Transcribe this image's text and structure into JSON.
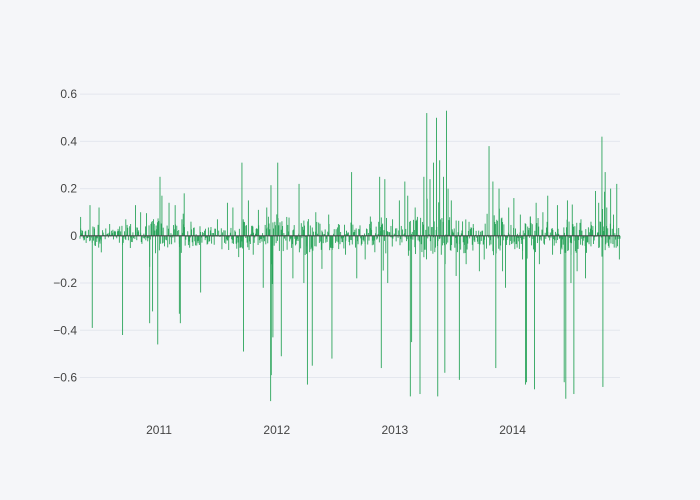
{
  "chart_data": {
    "type": "bar",
    "title": "",
    "xlabel": "",
    "ylabel": "",
    "x_range": [
      "2010-05-01",
      "2014-11-30"
    ],
    "ylim": [
      -0.78,
      0.66
    ],
    "y_ticks": [
      {
        "value": 0.6,
        "label": "0.6"
      },
      {
        "value": 0.4,
        "label": "0.4"
      },
      {
        "value": 0.2,
        "label": "0.2"
      },
      {
        "value": 0,
        "label": "0"
      },
      {
        "value": -0.2,
        "label": "−0.2"
      },
      {
        "value": -0.4,
        "label": "−0.4"
      },
      {
        "value": -0.6,
        "label": "−0.6"
      }
    ],
    "x_ticks": [
      {
        "value": "2011-01-01",
        "label": "2011"
      },
      {
        "value": "2012-01-01",
        "label": "2012"
      },
      {
        "value": "2013-01-01",
        "label": "2013"
      },
      {
        "value": "2014-01-01",
        "label": "2014"
      }
    ],
    "grid": true,
    "series": [
      {
        "color": "#2ca55c",
        "sample_interval_days": 2,
        "points": [
          [
            "2010-05-03",
            0.08
          ],
          [
            "2010-05-20",
            -0.03
          ],
          [
            "2010-06-01",
            0.13
          ],
          [
            "2010-06-08",
            -0.39
          ],
          [
            "2010-06-15",
            0.03
          ],
          [
            "2010-06-29",
            0.12
          ],
          [
            "2010-07-06",
            -0.07
          ],
          [
            "2010-08-01",
            0.05
          ],
          [
            "2010-09-01",
            0.04
          ],
          [
            "2010-09-10",
            -0.42
          ],
          [
            "2010-09-20",
            0.07
          ],
          [
            "2010-10-05",
            0.05
          ],
          [
            "2010-10-20",
            0.13
          ],
          [
            "2010-11-05",
            0.1
          ],
          [
            "2010-11-20",
            0.04
          ],
          [
            "2010-12-03",
            -0.37
          ],
          [
            "2010-12-12",
            -0.32
          ],
          [
            "2010-12-28",
            -0.46
          ],
          [
            "2011-01-04",
            0.25
          ],
          [
            "2011-01-10",
            0.17
          ],
          [
            "2011-02-01",
            0.14
          ],
          [
            "2011-02-20",
            0.13
          ],
          [
            "2011-03-05",
            -0.33
          ],
          [
            "2011-03-08",
            -0.37
          ],
          [
            "2011-03-20",
            0.18
          ],
          [
            "2011-04-10",
            0.06
          ],
          [
            "2011-05-10",
            -0.24
          ],
          [
            "2011-05-25",
            0.03
          ],
          [
            "2011-07-01",
            0.07
          ],
          [
            "2011-08-01",
            0.14
          ],
          [
            "2011-08-05",
            -0.06
          ],
          [
            "2011-08-18",
            0.12
          ],
          [
            "2011-09-05",
            -0.09
          ],
          [
            "2011-09-15",
            0.31
          ],
          [
            "2011-09-20",
            -0.49
          ],
          [
            "2011-10-05",
            0.15
          ],
          [
            "2011-10-20",
            -0.08
          ],
          [
            "2011-11-05",
            0.11
          ],
          [
            "2011-11-20",
            -0.22
          ],
          [
            "2011-12-01",
            0.12
          ],
          [
            "2011-12-13",
            -0.7
          ],
          [
            "2011-12-15",
            -0.59
          ],
          [
            "2011-12-20",
            -0.43
          ],
          [
            "2012-01-04",
            0.31
          ],
          [
            "2012-01-15",
            -0.51
          ],
          [
            "2012-02-01",
            0.08
          ],
          [
            "2012-02-20",
            -0.18
          ],
          [
            "2012-03-10",
            0.22
          ],
          [
            "2012-03-25",
            -0.2
          ],
          [
            "2012-04-05",
            -0.63
          ],
          [
            "2012-04-20",
            -0.55
          ],
          [
            "2012-05-01",
            0.1
          ],
          [
            "2012-05-20",
            -0.14
          ],
          [
            "2012-06-10",
            0.09
          ],
          [
            "2012-06-20",
            -0.52
          ],
          [
            "2012-07-10",
            0.05
          ],
          [
            "2012-08-01",
            -0.08
          ],
          [
            "2012-08-20",
            0.27
          ],
          [
            "2012-09-05",
            -0.18
          ],
          [
            "2012-10-01",
            -0.1
          ],
          [
            "2012-10-20",
            0.06
          ],
          [
            "2012-11-15",
            0.25
          ],
          [
            "2012-11-20",
            -0.56
          ],
          [
            "2012-12-01",
            0.24
          ],
          [
            "2012-12-10",
            -0.2
          ],
          [
            "2012-12-25",
            0.07
          ],
          [
            "2013-01-15",
            0.15
          ],
          [
            "2013-02-01",
            0.23
          ],
          [
            "2013-02-10",
            0.17
          ],
          [
            "2013-02-18",
            -0.68
          ],
          [
            "2013-02-22",
            -0.45
          ],
          [
            "2013-03-05",
            0.12
          ],
          [
            "2013-03-20",
            -0.67
          ],
          [
            "2013-04-01",
            0.25
          ],
          [
            "2013-04-10",
            0.52
          ],
          [
            "2013-04-20",
            0.24
          ],
          [
            "2013-05-01",
            0.31
          ],
          [
            "2013-05-10",
            0.5
          ],
          [
            "2013-05-14",
            -0.68
          ],
          [
            "2013-05-20",
            0.32
          ],
          [
            "2013-06-01",
            0.25
          ],
          [
            "2013-06-05",
            -0.58
          ],
          [
            "2013-06-10",
            0.53
          ],
          [
            "2013-06-15",
            0.2
          ],
          [
            "2013-06-25",
            0.15
          ],
          [
            "2013-07-10",
            -0.17
          ],
          [
            "2013-07-20",
            -0.61
          ],
          [
            "2013-08-10",
            -0.12
          ],
          [
            "2013-09-01",
            0.05
          ],
          [
            "2013-09-20",
            -0.15
          ],
          [
            "2013-10-05",
            -0.1
          ],
          [
            "2013-10-20",
            0.38
          ],
          [
            "2013-11-01",
            0.23
          ],
          [
            "2013-11-10",
            -0.56
          ],
          [
            "2013-11-20",
            0.2
          ],
          [
            "2013-12-01",
            -0.15
          ],
          [
            "2013-12-10",
            -0.22
          ],
          [
            "2013-12-20",
            0.12
          ],
          [
            "2014-01-05",
            0.16
          ],
          [
            "2014-01-15",
            -0.05
          ],
          [
            "2014-01-25",
            0.09
          ],
          [
            "2014-02-01",
            -0.1
          ],
          [
            "2014-02-10",
            -0.63
          ],
          [
            "2014-02-13",
            -0.62
          ],
          [
            "2014-02-25",
            0.08
          ],
          [
            "2014-03-10",
            -0.65
          ],
          [
            "2014-03-15",
            0.14
          ],
          [
            "2014-03-25",
            -0.12
          ],
          [
            "2014-04-05",
            0.1
          ],
          [
            "2014-04-20",
            0.17
          ],
          [
            "2014-05-05",
            -0.08
          ],
          [
            "2014-05-20",
            0.13
          ],
          [
            "2014-06-01",
            -0.05
          ],
          [
            "2014-06-10",
            -0.62
          ],
          [
            "2014-06-15",
            -0.69
          ],
          [
            "2014-06-20",
            0.15
          ],
          [
            "2014-07-01",
            -0.2
          ],
          [
            "2014-07-10",
            -0.67
          ],
          [
            "2014-07-20",
            -0.15
          ],
          [
            "2014-08-01",
            0.07
          ],
          [
            "2014-08-15",
            -0.18
          ],
          [
            "2014-09-01",
            0.06
          ],
          [
            "2014-09-15",
            0.19
          ],
          [
            "2014-09-25",
            0.14
          ],
          [
            "2014-10-05",
            0.42
          ],
          [
            "2014-10-08",
            -0.64
          ],
          [
            "2014-10-15",
            0.27
          ],
          [
            "2014-10-20",
            0.12
          ],
          [
            "2014-11-01",
            0.2
          ],
          [
            "2014-11-10",
            0.09
          ],
          [
            "2014-11-20",
            0.22
          ],
          [
            "2014-11-28",
            -0.1
          ]
        ]
      }
    ]
  }
}
